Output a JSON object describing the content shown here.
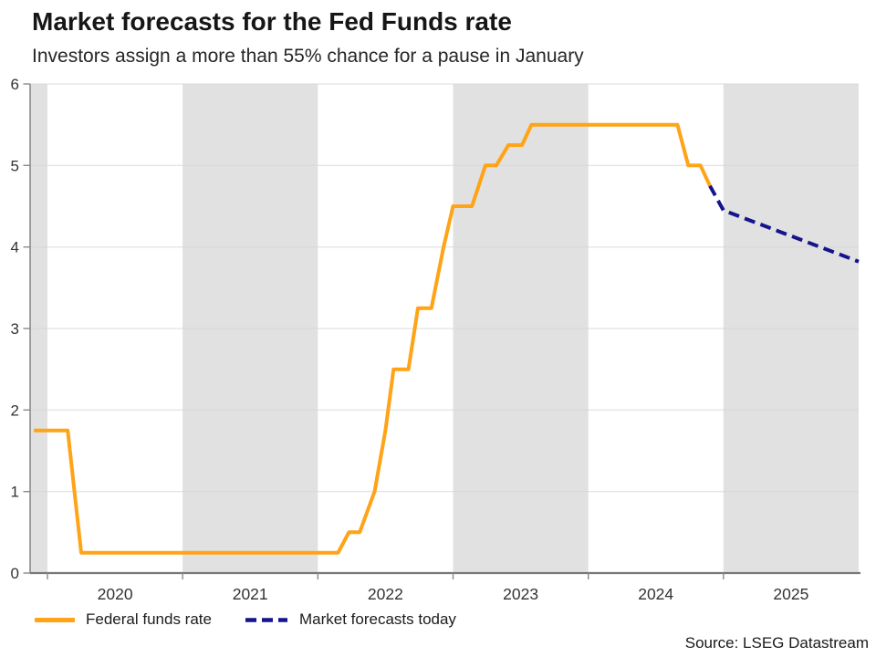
{
  "source": "Source: LSEG Datastream",
  "chart_data": {
    "type": "line",
    "title": "Market forecasts for the Fed Funds rate",
    "subtitle": "Investors assign a more than 55% chance for a pause in January",
    "xlabel": "",
    "ylabel": "",
    "x_range": [
      2019.872,
      2026.0
    ],
    "y_range": [
      0,
      6
    ],
    "y_ticks": [
      0,
      1,
      2,
      3,
      4,
      5,
      6
    ],
    "x_tick_years": [
      2020,
      2021,
      2022,
      2023,
      2024,
      2025
    ],
    "x_labels": [
      {
        "label": "2020",
        "center": 2020.5
      },
      {
        "label": "2021",
        "center": 2021.5
      },
      {
        "label": "2022",
        "center": 2022.5
      },
      {
        "label": "2023",
        "center": 2023.5
      },
      {
        "label": "2024",
        "center": 2024.5
      },
      {
        "label": "2025",
        "center": 2025.5
      }
    ],
    "shaded_bands": [
      [
        2019.872,
        2020.0
      ],
      [
        2021.0,
        2022.0
      ],
      [
        2023.0,
        2024.0
      ],
      [
        2025.0,
        2026.0
      ]
    ],
    "grid": "horizontal",
    "legend_position": "bottom-left",
    "colors": {
      "band": "#E1E1E1",
      "grid": "#D5D5D5",
      "axis": "#8A8A8A",
      "tick_text": "#333333"
    },
    "series": [
      {
        "name": "Federal funds rate",
        "color": "#FFA317",
        "dash": null,
        "points": [
          [
            2019.9,
            1.75
          ],
          [
            2020.15,
            1.75
          ],
          [
            2020.25,
            0.25
          ],
          [
            2022.15,
            0.25
          ],
          [
            2022.23,
            0.5
          ],
          [
            2022.31,
            0.5
          ],
          [
            2022.42,
            1.0
          ],
          [
            2022.5,
            1.75
          ],
          [
            2022.56,
            2.5
          ],
          [
            2022.67,
            2.5
          ],
          [
            2022.74,
            3.25
          ],
          [
            2022.84,
            3.25
          ],
          [
            2022.93,
            4.0
          ],
          [
            2023.0,
            4.5
          ],
          [
            2023.14,
            4.5
          ],
          [
            2023.24,
            5.0
          ],
          [
            2023.32,
            5.0
          ],
          [
            2023.41,
            5.25
          ],
          [
            2023.51,
            5.25
          ],
          [
            2023.58,
            5.5
          ],
          [
            2024.66,
            5.5
          ],
          [
            2024.74,
            5.0
          ],
          [
            2024.83,
            5.0
          ],
          [
            2024.9,
            4.75
          ]
        ]
      },
      {
        "name": "Market forecasts today",
        "color": "#14148C",
        "dash": [
          12,
          6.5
        ],
        "points": [
          [
            2024.9,
            4.75
          ],
          [
            2025.0,
            4.45
          ],
          [
            2026.0,
            3.82
          ]
        ]
      }
    ]
  }
}
